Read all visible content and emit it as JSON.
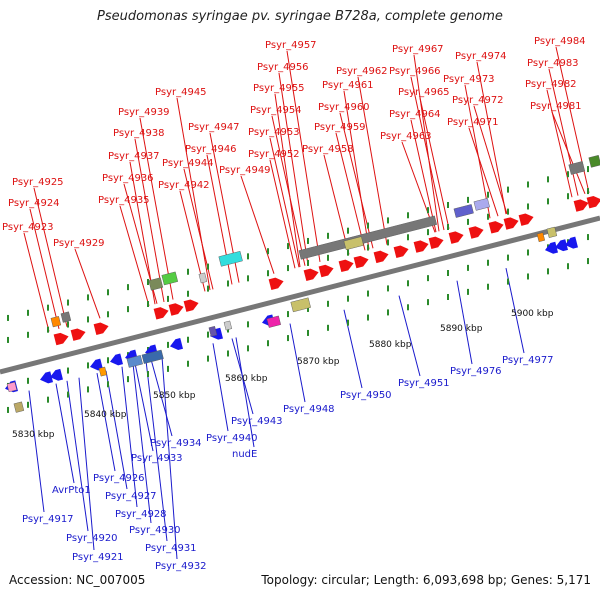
{
  "title": "Pseudomonas syringae pv. syringae B728a, complete genome",
  "footer": {
    "accession": "Accession: NC_007005",
    "topology": "Topology: circular; Length: 6,093,698 bp; Genes: 5,171"
  },
  "colors": {
    "forward": "#ee1111",
    "reverse": "#1818ee",
    "axis": "#777777",
    "tick": "#2a8a2a",
    "label_red": "#dd1111",
    "label_blue": "#1a1acc"
  },
  "scale_ticks": [
    "5830 kbp",
    "5840 kbp",
    "5850 kbp",
    "5860 kbp",
    "5870 kbp",
    "5880 kbp",
    "5890 kbp",
    "5900 kbp"
  ],
  "forward_labels": [
    "Psyr_4923",
    "Psyr_4924",
    "Psyr_4925",
    "Psyr_4929",
    "Psyr_4935",
    "Psyr_4936",
    "Psyr_4937",
    "Psyr_4938",
    "Psyr_4939",
    "Psyr_4942",
    "Psyr_4944",
    "Psyr_4945",
    "Psyr_4946",
    "Psyr_4947",
    "Psyr_4949",
    "Psyr_4952",
    "Psyr_4953",
    "Psyr_4954",
    "Psyr_4955",
    "Psyr_4956",
    "Psyr_4957",
    "Psyr_4958",
    "Psyr_4959",
    "Psyr_4960",
    "Psyr_4961",
    "Psyr_4962",
    "Psyr_4963",
    "Psyr_4964",
    "Psyr_4965",
    "Psyr_4966",
    "Psyr_4967",
    "Psyr_4971",
    "Psyr_4972",
    "Psyr_4973",
    "Psyr_4974",
    "Psyr_4981",
    "Psyr_4982",
    "Psyr_4983",
    "Psyr_4984"
  ],
  "reverse_labels": [
    "Psyr_4917",
    "AvrPto1",
    "Psyr_4920",
    "Psyr_4921",
    "Psyr_4926",
    "Psyr_4927",
    "Psyr_4928",
    "Psyr_4930",
    "Psyr_4931",
    "Psyr_4932",
    "Psyr_4933",
    "Psyr_4934",
    "Psyr_4940",
    "nudE",
    "Psyr_4943",
    "Psyr_4948",
    "Psyr_4950",
    "Psyr_4951",
    "Psyr_4976",
    "Psyr_4977"
  ]
}
